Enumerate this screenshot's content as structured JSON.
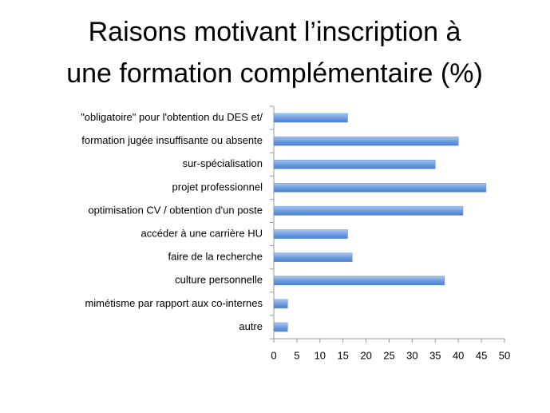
{
  "chart_data": {
    "type": "bar",
    "orientation": "horizontal",
    "title": [
      "Raisons motivant l’inscription à",
      "une formation complémentaire (%)"
    ],
    "categories": [
      "\"obligatoire\" pour l'obtention du DES et/",
      "formation jugée insuffisante ou absente",
      "sur-spécialisation",
      "projet professionnel",
      "optimisation CV / obtention d'un poste",
      "accéder à une carrière HU",
      "faire de la recherche",
      "culture personnelle",
      "mimétisme par rapport aux co-internes",
      "autre"
    ],
    "values": [
      16,
      40,
      35,
      46,
      41,
      16,
      17,
      37,
      3,
      3
    ],
    "color": "#5b8fd8",
    "xlim": [
      0,
      50
    ],
    "xticks": [
      0,
      5,
      10,
      15,
      20,
      25,
      30,
      35,
      40,
      45,
      50
    ],
    "grid": false
  }
}
